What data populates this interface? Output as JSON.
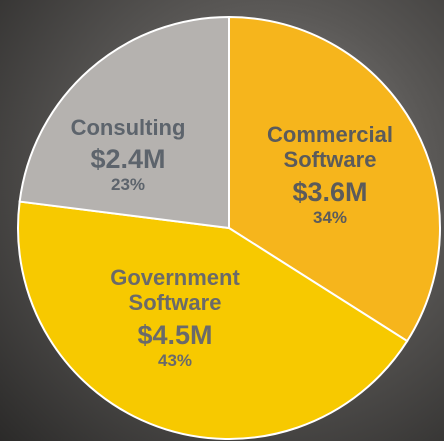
{
  "chart_data": {
    "type": "pie",
    "categories": [
      "Commercial Software",
      "Government Software",
      "Consulting"
    ],
    "values": [
      34,
      43,
      23
    ],
    "value_labels": [
      "34%",
      "43%",
      "23%"
    ],
    "amounts": [
      3600000,
      4500000,
      2400000
    ],
    "amount_labels": [
      "$3.6M",
      "$4.5M",
      "$2.4M"
    ],
    "colors": [
      "#f6b51c",
      "#f7c900",
      "#b5b2af"
    ]
  }
}
